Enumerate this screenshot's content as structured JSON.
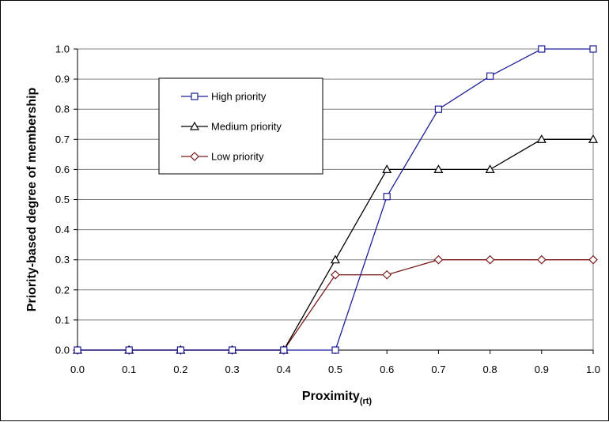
{
  "chart_data": {
    "type": "line",
    "title": "",
    "xlabel": "Proximity",
    "xlabel_subscript": "(rt)",
    "ylabel": "Priority-based degree of membership",
    "x": [
      0.0,
      0.1,
      0.2,
      0.3,
      0.4,
      0.5,
      0.6,
      0.7,
      0.8,
      0.9,
      1.0
    ],
    "xlim": [
      0.0,
      1.0
    ],
    "ylim": [
      0.0,
      1.0
    ],
    "xticks": [
      "0.0",
      "0.1",
      "0.2",
      "0.3",
      "0.4",
      "0.5",
      "0.6",
      "0.7",
      "0.8",
      "0.9",
      "1.0"
    ],
    "yticks": [
      "0.0",
      "0.1",
      "0.2",
      "0.3",
      "0.4",
      "0.5",
      "0.6",
      "0.7",
      "0.8",
      "0.9",
      "1.0"
    ],
    "grid": "horizontal",
    "legend_position": "top-left",
    "series": [
      {
        "name": "High priority",
        "color": "#1f1f9a",
        "marker": "square",
        "values": [
          0,
          0,
          0,
          0,
          0,
          0,
          0.51,
          0.8,
          0.91,
          1.0,
          1.0
        ]
      },
      {
        "name": "Medium priority",
        "color": "#000000",
        "marker": "triangle",
        "values": [
          0,
          0,
          0,
          0,
          0,
          0.3,
          0.6,
          0.6,
          0.6,
          0.7,
          0.7
        ]
      },
      {
        "name": "Low priority",
        "color": "#7a1a1a",
        "marker": "diamond",
        "values": [
          0,
          0,
          0,
          0,
          0,
          0.25,
          0.25,
          0.3,
          0.3,
          0.3,
          0.3
        ]
      }
    ]
  }
}
